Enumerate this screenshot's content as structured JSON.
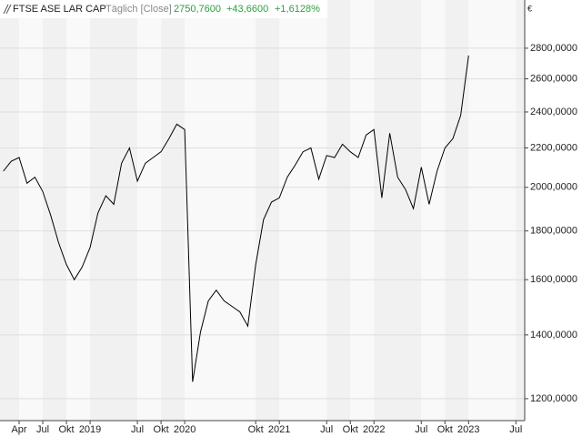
{
  "chart_data": {
    "type": "line",
    "title": "FTSE ASE LAR CAP",
    "subtitle": "Täglich [Close]",
    "annotations": [
      "2750,7600",
      "+43,6600",
      "+1,6128%"
    ],
    "y_unit": "€",
    "log_scale": true,
    "grid": true,
    "color": "#000000",
    "annotation_color": "#2e9e3e",
    "x": [
      "2018-02",
      "2018-03",
      "2018-04",
      "2018-05",
      "2018-06",
      "2018-07",
      "2018-08",
      "2018-09",
      "2018-10",
      "2018-11",
      "2018-12",
      "2019-01",
      "2019-02",
      "2019-03",
      "2019-04",
      "2019-05",
      "2019-06",
      "2019-07",
      "2019-08",
      "2019-09",
      "2019-10",
      "2019-11",
      "2019-12",
      "2020-01",
      "2020-02",
      "2020-03",
      "2020-04",
      "2020-05",
      "2020-06",
      "2020-07",
      "2020-08",
      "2020-09",
      "2020-10",
      "2020-11",
      "2020-12",
      "2021-01",
      "2021-02",
      "2021-03",
      "2021-04",
      "2021-05",
      "2021-06",
      "2021-07",
      "2021-08",
      "2021-09",
      "2021-10",
      "2021-11",
      "2021-12",
      "2022-01",
      "2022-02",
      "2022-03",
      "2022-04",
      "2022-05",
      "2022-06",
      "2022-07",
      "2022-08",
      "2022-09",
      "2022-10",
      "2022-11",
      "2022-12",
      "2023-01"
    ],
    "values": [
      2080,
      2130,
      2150,
      2020,
      2050,
      1980,
      1870,
      1750,
      1660,
      1600,
      1650,
      1730,
      1880,
      1960,
      1920,
      2120,
      2200,
      2030,
      2120,
      2150,
      2180,
      2250,
      2330,
      2300,
      1250,
      1410,
      1520,
      1560,
      1520,
      1500,
      1480,
      1430,
      1660,
      1850,
      1930,
      1950,
      2050,
      2110,
      2180,
      2200,
      2040,
      2160,
      2150,
      2220,
      2180,
      2150,
      2270,
      2300,
      1950,
      2280,
      2050,
      1990,
      1900,
      2100,
      1920,
      2080,
      2200,
      2250,
      2380,
      2750.76
    ],
    "xlim": [
      "2018-01",
      "2023-08"
    ],
    "xticks": [
      {
        "value": "2018-04",
        "label": "Apr"
      },
      {
        "value": "2018-07",
        "label": "Jul"
      },
      {
        "value": "2018-10",
        "label": "Okt"
      },
      {
        "value": "2019-01",
        "label": "2019"
      },
      {
        "value": "2019-07",
        "label": "Jul"
      },
      {
        "value": "2019-10",
        "label": "Okt"
      },
      {
        "value": "2020-01",
        "label": "2020"
      },
      {
        "value": "2020-10",
        "label": "Okt"
      },
      {
        "value": "2021-01",
        "label": "2021"
      },
      {
        "value": "2021-07",
        "label": "Jul"
      },
      {
        "value": "2021-10",
        "label": "Okt"
      },
      {
        "value": "2022-01",
        "label": "2022"
      },
      {
        "value": "2022-07",
        "label": "Jul"
      },
      {
        "value": "2022-10",
        "label": "Okt"
      },
      {
        "value": "2023-01",
        "label": "2023"
      },
      {
        "value": "2023-07",
        "label": "Jul"
      }
    ],
    "ylim": [
      1138,
      3146
    ],
    "yticks": [
      {
        "value": 1200,
        "label": "1200,0000"
      },
      {
        "value": 1400,
        "label": "1400,0000"
      },
      {
        "value": 1600,
        "label": "1600,0000"
      },
      {
        "value": 1800,
        "label": "1800,0000"
      },
      {
        "value": 2000,
        "label": "2000,0000"
      },
      {
        "value": 2200,
        "label": "2200,0000"
      },
      {
        "value": 2400,
        "label": "2400,0000"
      },
      {
        "value": 2600,
        "label": "2600,0000"
      },
      {
        "value": 2800,
        "label": "2800,0000"
      }
    ]
  }
}
